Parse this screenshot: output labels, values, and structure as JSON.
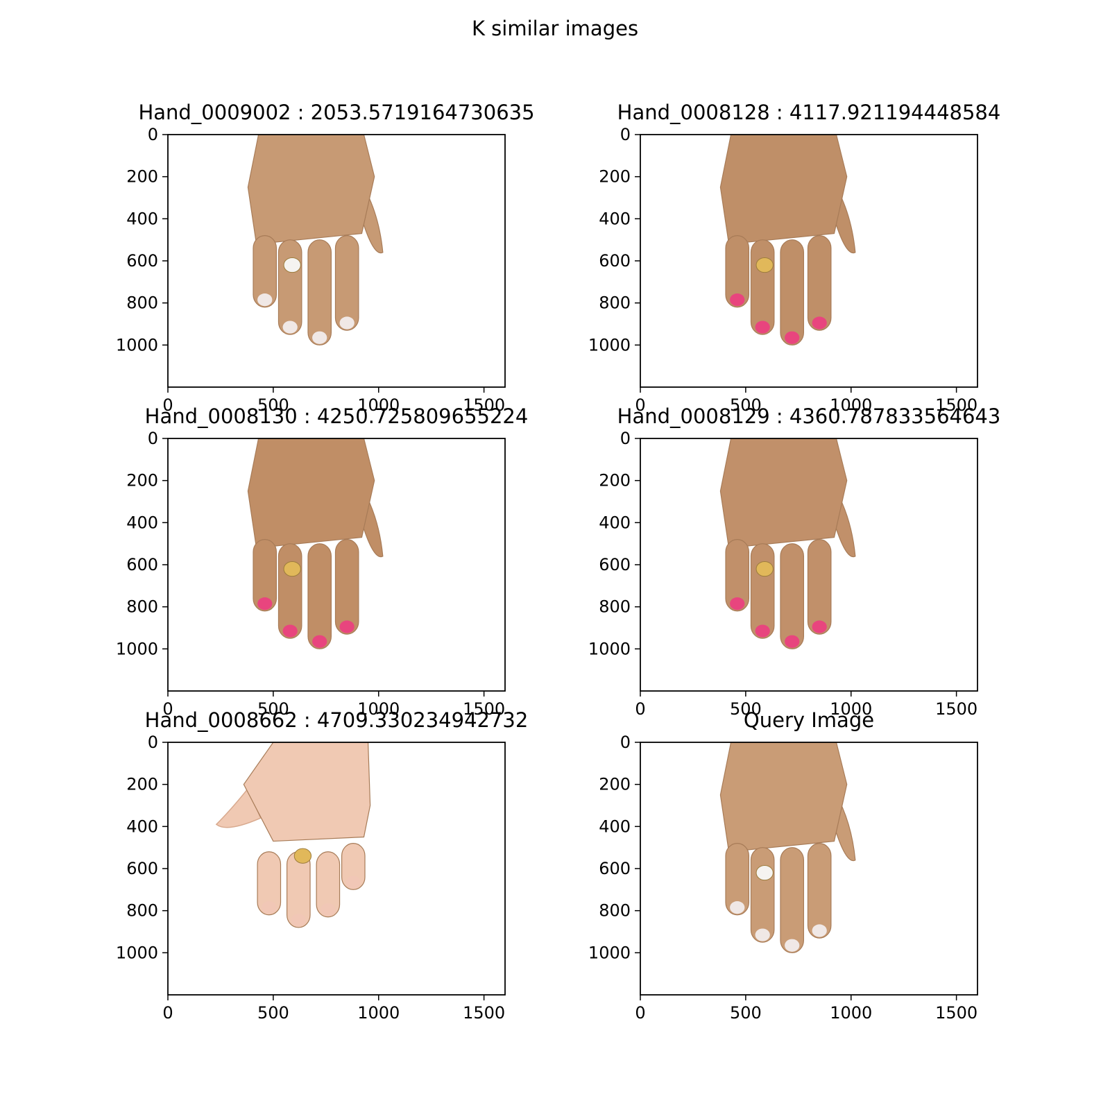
{
  "figure": {
    "title": "K similar images"
  },
  "panels": [
    {
      "title": "Hand_0009002 : 2053.5719164730635",
      "hand": "dorsal",
      "ring": "white-band",
      "nail_color": "#f0e8e6",
      "skin_color": "#c79a74"
    },
    {
      "title": "Hand_0008128 : 4117.921194448584",
      "hand": "dorsal",
      "ring": "gold",
      "nail_color": "#e8457e",
      "skin_color": "#bf8f68"
    },
    {
      "title": "Hand_0008130 : 4250.725809655224",
      "hand": "dorsal",
      "ring": "gold",
      "nail_color": "#e8457e",
      "skin_color": "#c08e66"
    },
    {
      "title": "Hand_0008129 : 4360.787833564643",
      "hand": "dorsal",
      "ring": "gold",
      "nail_color": "#e8457e",
      "skin_color": "#c1906a"
    },
    {
      "title": "Hand_0008662 : 4709.330234942732",
      "hand": "palm",
      "ring": "gold-band",
      "nail_color": "#f1c7b6",
      "skin_color": "#f0c9b3"
    },
    {
      "title": "Query Image",
      "hand": "dorsal",
      "ring": "white-band",
      "nail_color": "#f0e8e6",
      "skin_color": "#c99c76"
    }
  ],
  "axes": {
    "x_ticks": [
      0,
      500,
      1000,
      1500
    ],
    "y_ticks": [
      0,
      200,
      400,
      600,
      800,
      1000
    ],
    "x_range": [
      0,
      1600
    ],
    "y_range": [
      0,
      1200
    ]
  }
}
